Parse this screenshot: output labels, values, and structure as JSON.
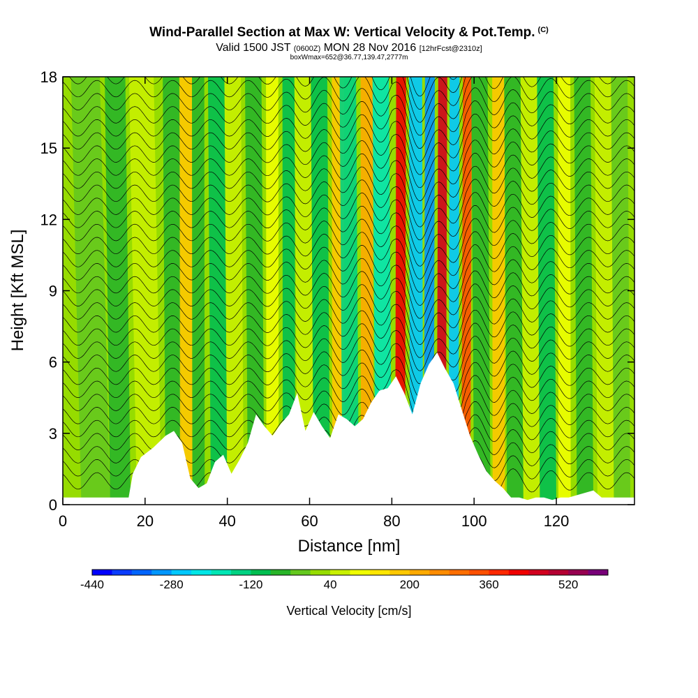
{
  "title": {
    "main": "Wind-Parallel Section at Max W: Vertical Velocity & Pot.Temp.",
    "copyright": "(C)",
    "valid_prefix": "Valid 1500 JST",
    "valid_utc": "(0600Z)",
    "valid_suffix": "MON 28 Nov 2016",
    "forecast": "[12hrFcst@2310z]",
    "boxinfo": "boxWmax=652@36.77,139.47,2777m"
  },
  "chart_data": {
    "type": "heatmap",
    "xlabel": "Distance [nm]",
    "ylabel": "Height [Kft MSL]",
    "xlim": [
      0,
      139
    ],
    "ylim": [
      0,
      18
    ],
    "x_ticks": [
      0,
      20,
      40,
      60,
      80,
      100,
      120
    ],
    "y_ticks": [
      0,
      3,
      6,
      9,
      12,
      15,
      18
    ],
    "colorbar": {
      "title": "Vertical Velocity [cm/s]",
      "labels": [
        -440,
        -280,
        -120,
        40,
        200,
        360,
        520
      ],
      "levels": [
        -440,
        -400,
        -360,
        -320,
        -280,
        -240,
        -200,
        -160,
        -120,
        -80,
        -40,
        0,
        40,
        80,
        120,
        160,
        200,
        240,
        280,
        320,
        360,
        400,
        440,
        480,
        520,
        560,
        600
      ],
      "colors": [
        "#0000ff",
        "#0a3cff",
        "#0064ff",
        "#0096ff",
        "#00c8ff",
        "#00e6e6",
        "#00e6b4",
        "#00d282",
        "#00be50",
        "#28b428",
        "#64c81e",
        "#96dc00",
        "#c8f000",
        "#f0ff00",
        "#ffe600",
        "#ffc800",
        "#ffaa00",
        "#ff8c00",
        "#ff6e00",
        "#ff5000",
        "#ff2800",
        "#f00000",
        "#d2001e",
        "#b40032",
        "#960050",
        "#780078"
      ]
    },
    "terrain_profile": {
      "x": [
        0,
        16,
        17,
        19,
        22,
        25,
        27,
        29,
        31,
        33,
        35,
        37,
        39,
        41,
        43,
        45,
        47,
        49,
        51,
        53,
        55,
        57,
        59,
        61,
        63,
        65,
        67,
        69,
        71,
        73,
        75,
        77,
        79,
        81,
        83,
        85,
        87,
        89,
        91,
        93,
        95,
        97,
        99,
        101,
        103,
        105,
        107,
        109,
        111,
        113,
        115,
        117,
        119,
        121,
        123,
        125,
        127,
        129,
        131,
        133,
        135,
        139
      ],
      "height_kft": [
        0.3,
        0.3,
        1.3,
        2.0,
        2.4,
        2.9,
        3.1,
        2.6,
        1.1,
        0.7,
        0.9,
        1.8,
        2.1,
        1.3,
        1.9,
        2.6,
        3.8,
        3.3,
        2.9,
        3.4,
        3.8,
        4.7,
        3.1,
        3.9,
        3.3,
        2.8,
        3.8,
        3.6,
        3.3,
        3.6,
        4.3,
        4.8,
        4.9,
        5.4,
        4.7,
        3.8,
        5.1,
        5.9,
        6.4,
        5.7,
        5.1,
        4.0,
        2.9,
        2.1,
        1.4,
        1.0,
        0.7,
        0.3,
        0.3,
        0.2,
        0.3,
        0.3,
        0.2,
        0.3,
        0.3,
        0.4,
        0.5,
        0.6,
        0.3,
        0.3,
        0.3,
        0.3
      ]
    },
    "series": [
      {
        "name": "Vertical Velocity [cm/s]",
        "field": "vertical_velocity",
        "max": 652
      },
      {
        "name": "Pot.Temp.",
        "field": "potential_temperature_contours"
      }
    ]
  }
}
